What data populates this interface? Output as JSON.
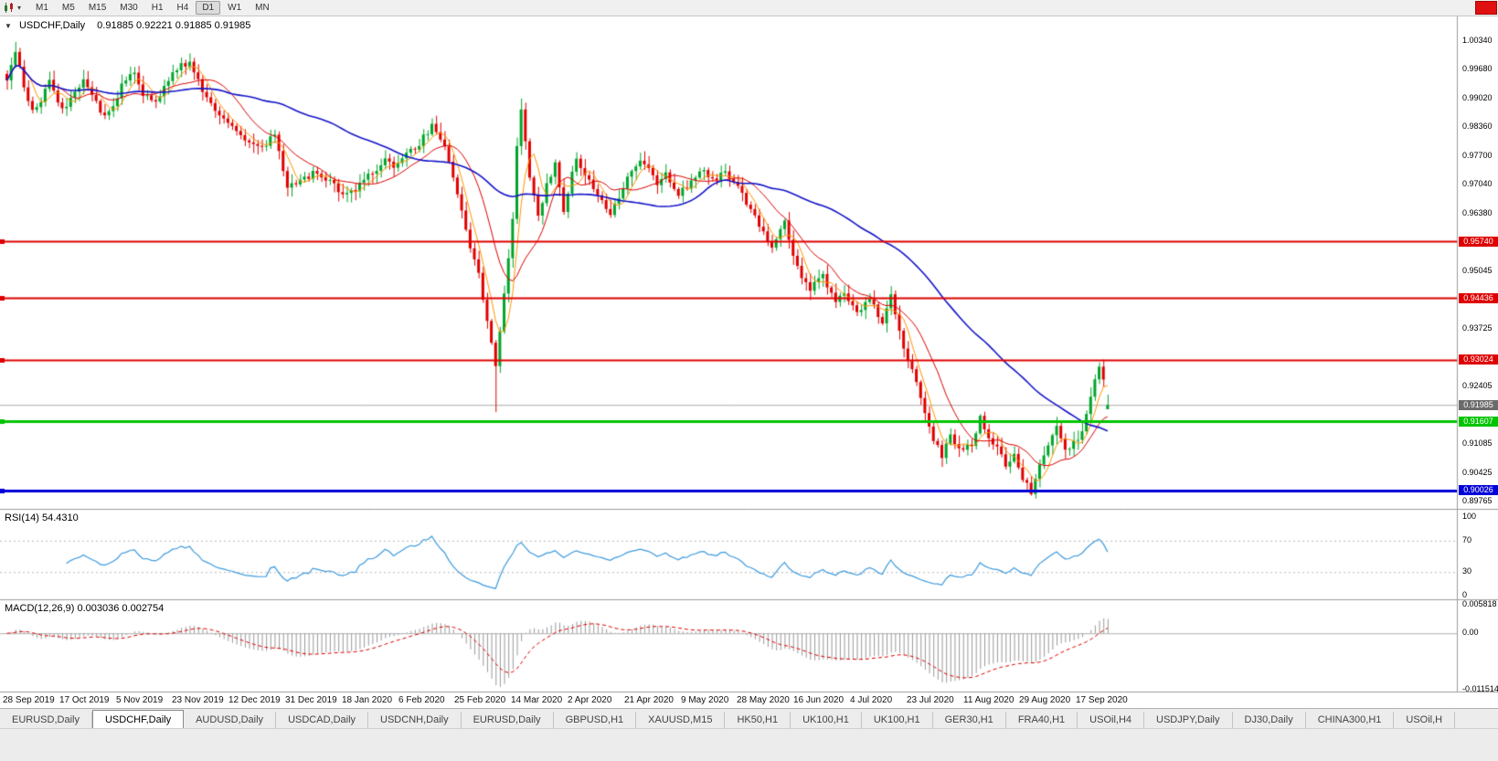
{
  "icons": {
    "collapse_arrow": "▼",
    "dropdown_arrow": "▾",
    "chart_type": "candlestick-chart"
  },
  "toolbar": {
    "timeframes": [
      {
        "label": "M1",
        "active": false
      },
      {
        "label": "M5",
        "active": false
      },
      {
        "label": "M15",
        "active": false
      },
      {
        "label": "M30",
        "active": false
      },
      {
        "label": "H1",
        "active": false
      },
      {
        "label": "H4",
        "active": false
      },
      {
        "label": "D1",
        "active": true
      },
      {
        "label": "W1",
        "active": false
      },
      {
        "label": "MN",
        "active": false
      }
    ]
  },
  "chart": {
    "symbol_title": "USDCHF,Daily",
    "ohlc": "0.91885 0.92221 0.91885 0.91985",
    "open": "0.91885",
    "high": "0.92221",
    "low": "0.91885",
    "close": "0.91985"
  },
  "price_axis": {
    "ticks": [
      "1.00340",
      "0.99680",
      "0.99020",
      "0.98360",
      "0.97700",
      "0.97040",
      "0.96380",
      "0.95045",
      "0.93725",
      "0.92405",
      "0.91085",
      "0.90425",
      "0.89765"
    ],
    "levels": [
      {
        "label": "0.95740",
        "price": 0.9574,
        "bg": "#DE0000",
        "fg": "#FFFFFF",
        "kind": "resistance-line"
      },
      {
        "label": "0.94436",
        "price": 0.94436,
        "bg": "#DE0000",
        "fg": "#FFFFFF",
        "kind": "resistance-line"
      },
      {
        "label": "0.93024",
        "price": 0.93024,
        "bg": "#DE0000",
        "fg": "#FFFFFF",
        "kind": "resistance-line"
      },
      {
        "label": "0.91985",
        "price": 0.91985,
        "bg": "#6B6B6B",
        "fg": "#FFFFFF",
        "kind": "current-price"
      },
      {
        "label": "0.91607",
        "price": 0.91607,
        "bg": "#00C400",
        "fg": "#FFFFFF",
        "kind": "support-line"
      },
      {
        "label": "0.90026",
        "price": 0.90026,
        "bg": "#0000D8",
        "fg": "#FFFFFF",
        "kind": "support-line"
      }
    ]
  },
  "rsi_panel": {
    "label": "RSI(14) 54.4310",
    "axis_labels": [
      {
        "v": 100,
        "t": "100"
      },
      {
        "v": 70,
        "t": "70"
      },
      {
        "v": 30,
        "t": "30"
      },
      {
        "v": 0,
        "t": "0"
      }
    ]
  },
  "macd_panel": {
    "label": "MACD(12,26,9) 0.003036 0.002754",
    "axis_labels": [
      {
        "v": 0.005818,
        "t": "0.005818"
      },
      {
        "v": 0,
        "t": "0.00"
      },
      {
        "v": -0.011514,
        "t": "-0.011514"
      }
    ]
  },
  "tabs": [
    {
      "label": "EURUSD,Daily",
      "active": false
    },
    {
      "label": "USDCHF,Daily",
      "active": true
    },
    {
      "label": "AUDUSD,Daily",
      "active": false
    },
    {
      "label": "USDCAD,Daily",
      "active": false
    },
    {
      "label": "USDCNH,Daily",
      "active": false
    },
    {
      "label": "EURUSD,Daily",
      "active": false
    },
    {
      "label": "GBPUSD,H1",
      "active": false
    },
    {
      "label": "XAUUSD,M15",
      "active": false
    },
    {
      "label": "HK50,H1",
      "active": false
    },
    {
      "label": "UK100,H1",
      "active": false
    },
    {
      "label": "UK100,H1",
      "active": false
    },
    {
      "label": "GER30,H1",
      "active": false
    },
    {
      "label": "FRA40,H1",
      "active": false
    },
    {
      "label": "USOil,H4",
      "active": false
    },
    {
      "label": "USDJPY,Daily",
      "active": false
    },
    {
      "label": "DJ30,Daily",
      "active": false
    },
    {
      "label": "CHINA300,H1",
      "active": false
    },
    {
      "label": "USOil,H",
      "active": false
    }
  ],
  "chart_data": {
    "type": "candlestick",
    "symbol": "USDCHF",
    "timeframe": "Daily",
    "visible_price_range": [
      0.89765,
      1.0034
    ],
    "num_candles": 260,
    "x_labels": [
      "28 Sep 2019",
      "17 Oct 2019",
      "5 Nov 2019",
      "23 Nov 2019",
      "12 Dec 2019",
      "31 Dec 2019",
      "18 Jan 2020",
      "6 Feb 2020",
      "25 Feb 2020",
      "14 Mar 2020",
      "2 Apr 2020",
      "21 Apr 2020",
      "9 May 2020",
      "28 May 2020",
      "16 Jun 2020",
      "4 Jul 2020",
      "23 Jul 2020",
      "11 Aug 2020",
      "29 Aug 2020",
      "17 Sep 2020"
    ],
    "close_path_anchors": [
      [
        0,
        0.995
      ],
      [
        2,
        1.0005
      ],
      [
        4,
        0.993
      ],
      [
        6,
        0.9872
      ],
      [
        8,
        0.9895
      ],
      [
        10,
        0.9948
      ],
      [
        13,
        0.9872
      ],
      [
        15,
        0.99
      ],
      [
        18,
        0.9952
      ],
      [
        20,
        0.9908
      ],
      [
        23,
        0.9862
      ],
      [
        25,
        0.988
      ],
      [
        27,
        0.9932
      ],
      [
        30,
        0.9962
      ],
      [
        32,
        0.9915
      ],
      [
        35,
        0.9895
      ],
      [
        38,
        0.9945
      ],
      [
        40,
        0.9972
      ],
      [
        43,
        0.9985
      ],
      [
        45,
        0.994
      ],
      [
        48,
        0.9892
      ],
      [
        51,
        0.9858
      ],
      [
        54,
        0.9832
      ],
      [
        57,
        0.9802
      ],
      [
        60,
        0.9788
      ],
      [
        63,
        0.9818
      ],
      [
        66,
        0.97
      ],
      [
        69,
        0.9712
      ],
      [
        72,
        0.9732
      ],
      [
        75,
        0.9716
      ],
      [
        78,
        0.9692
      ],
      [
        80,
        0.9682
      ],
      [
        83,
        0.9702
      ],
      [
        86,
        0.9732
      ],
      [
        89,
        0.9762
      ],
      [
        91,
        0.9742
      ],
      [
        94,
        0.9772
      ],
      [
        97,
        0.9798
      ],
      [
        100,
        0.984
      ],
      [
        103,
        0.9795
      ],
      [
        105,
        0.9725
      ],
      [
        107,
        0.9638
      ],
      [
        109,
        0.9558
      ],
      [
        111,
        0.9508
      ],
      [
        113,
        0.9385
      ],
      [
        115,
        0.9292
      ],
      [
        117,
        0.9455
      ],
      [
        119,
        0.9625
      ],
      [
        120,
        0.9788
      ],
      [
        121,
        0.988
      ],
      [
        123,
        0.9728
      ],
      [
        125,
        0.9628
      ],
      [
        127,
        0.97
      ],
      [
        129,
        0.9758
      ],
      [
        131,
        0.9648
      ],
      [
        134,
        0.9768
      ],
      [
        136,
        0.973
      ],
      [
        139,
        0.9682
      ],
      [
        142,
        0.9642
      ],
      [
        144,
        0.968
      ],
      [
        147,
        0.9738
      ],
      [
        150,
        0.9758
      ],
      [
        153,
        0.97
      ],
      [
        155,
        0.9728
      ],
      [
        158,
        0.9682
      ],
      [
        160,
        0.9702
      ],
      [
        163,
        0.9738
      ],
      [
        166,
        0.9718
      ],
      [
        169,
        0.9728
      ],
      [
        172,
        0.9698
      ],
      [
        174,
        0.9658
      ],
      [
        177,
        0.9612
      ],
      [
        180,
        0.9562
      ],
      [
        183,
        0.9618
      ],
      [
        186,
        0.9512
      ],
      [
        189,
        0.9462
      ],
      [
        192,
        0.9498
      ],
      [
        195,
        0.9432
      ],
      [
        197,
        0.9458
      ],
      [
        200,
        0.9412
      ],
      [
        203,
        0.9438
      ],
      [
        206,
        0.9392
      ],
      [
        208,
        0.9452
      ],
      [
        211,
        0.933
      ],
      [
        214,
        0.9252
      ],
      [
        216,
        0.9182
      ],
      [
        218,
        0.9122
      ],
      [
        220,
        0.9082
      ],
      [
        222,
        0.9128
      ],
      [
        224,
        0.9098
      ],
      [
        227,
        0.9112
      ],
      [
        229,
        0.9168
      ],
      [
        231,
        0.9128
      ],
      [
        233,
        0.9098
      ],
      [
        235,
        0.9062
      ],
      [
        237,
        0.9088
      ],
      [
        239,
        0.9032
      ],
      [
        241,
        0.8998
      ],
      [
        243,
        0.9058
      ],
      [
        245,
        0.9108
      ],
      [
        247,
        0.9148
      ],
      [
        249,
        0.9092
      ],
      [
        251,
        0.9108
      ],
      [
        253,
        0.9142
      ],
      [
        255,
        0.9218
      ],
      [
        257,
        0.9285
      ],
      [
        258,
        0.9262
      ],
      [
        259,
        0.9199
      ]
    ],
    "wick_overrides": [
      {
        "index": 2,
        "high": 1.0032
      },
      {
        "index": 115,
        "low": 0.9182
      },
      {
        "index": 121,
        "high": 0.9902
      },
      {
        "index": 220,
        "low": 0.9056
      },
      {
        "index": 241,
        "low": 0.899
      },
      {
        "index": 257,
        "high": 0.9296
      }
    ],
    "last_candle": {
      "open": 0.91885,
      "high": 0.92221,
      "low": 0.91885,
      "close": 0.91985
    },
    "horizontal_lines": [
      {
        "price": 0.9574,
        "color": "#DE0000",
        "width": 2
      },
      {
        "price": 0.94436,
        "color": "#DE0000",
        "width": 2
      },
      {
        "price": 0.93024,
        "color": "#DE0000",
        "width": 2
      },
      {
        "price": 0.91607,
        "color": "#00C400",
        "width": 3
      },
      {
        "price": 0.90026,
        "color": "#0000D8",
        "width": 3
      }
    ],
    "current_price_line": {
      "price": 0.91985,
      "color": "#ABABAB",
      "width": 1
    },
    "moving_averages": [
      {
        "period": 5,
        "color": "#FF9500",
        "width": 1
      },
      {
        "period": 13,
        "color": "#DE0000",
        "width": 1
      },
      {
        "period": 50,
        "color": "#1414C8",
        "width": 1.6
      }
    ],
    "rsi": {
      "period": 14,
      "current": 54.431,
      "levels": [
        70,
        30
      ],
      "color": "#3E9BDE"
    },
    "macd": {
      "fast": 12,
      "slow": 26,
      "signal": 9,
      "macd_current": 0.003036,
      "signal_current": 0.002754,
      "hist_color": "#9A9A9A",
      "signal_color": "#DE0000",
      "axis_max": 0.005818,
      "axis_min": -0.011514
    },
    "candle_up_color": "#00A52A",
    "candle_down_color": "#E00000"
  }
}
